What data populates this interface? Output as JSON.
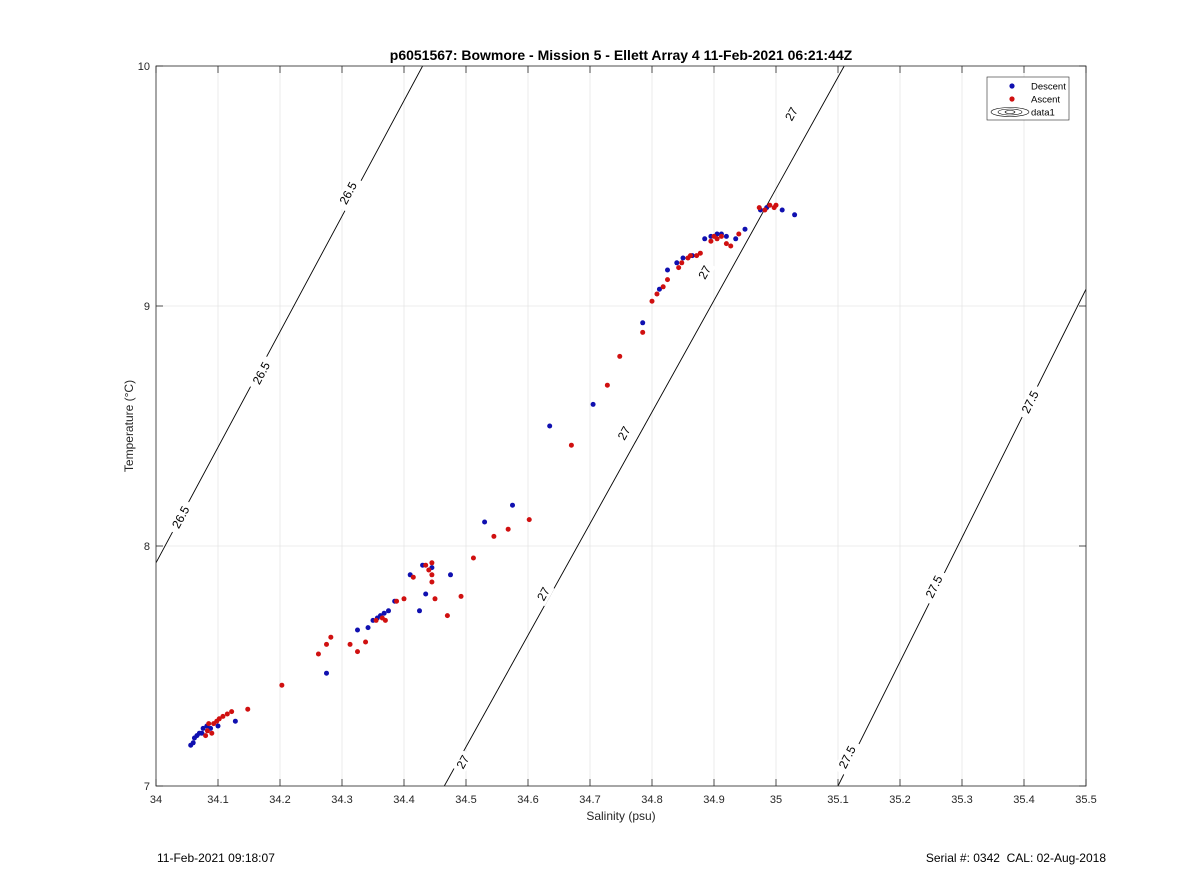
{
  "chart_data": {
    "type": "scatter",
    "title": "p6051567: Bowmore - Mission 5 - Ellett Array 4 11-Feb-2021 06:21:44Z",
    "xlabel": "Salinity (psu)",
    "ylabel": "Temperature (°C)",
    "xlim": [
      34,
      35.5
    ],
    "ylim": [
      7,
      10
    ],
    "x_ticks": [
      "34",
      "34.1",
      "34.2",
      "34.3",
      "34.4",
      "34.5",
      "34.6",
      "34.7",
      "34.8",
      "34.9",
      "35",
      "35.1",
      "35.2",
      "35.3",
      "35.4",
      "35.5"
    ],
    "y_ticks": [
      "7",
      "8",
      "9",
      "10"
    ],
    "grid": true,
    "legend_position": "top-right",
    "legend": [
      "Descent",
      "Ascent",
      "data1"
    ],
    "colors": {
      "descent": "#1010b0",
      "ascent": "#d01010",
      "contour": "#000000",
      "grid": "#e6e6e6"
    },
    "density_contours": [
      {
        "label": "26.5",
        "points": [
          [
            34.0,
            7.93
          ],
          [
            34.43,
            10.0
          ]
        ],
        "labels_at": [
          [
            34.04,
            8.12
          ],
          [
            34.17,
            8.72
          ],
          [
            34.31,
            9.47
          ]
        ]
      },
      {
        "label": "27",
        "points": [
          [
            34.465,
            7.0
          ],
          [
            35.11,
            10.0
          ]
        ],
        "labels_at": [
          [
            34.495,
            7.1
          ],
          [
            34.625,
            7.8
          ],
          [
            34.755,
            8.47
          ],
          [
            34.885,
            9.14
          ],
          [
            35.025,
            9.8
          ]
        ]
      },
      {
        "label": "27.5",
        "points": [
          [
            35.1,
            7.0
          ],
          [
            35.5,
            9.07
          ]
        ],
        "labels_at": [
          [
            35.115,
            7.12
          ],
          [
            35.255,
            7.83
          ],
          [
            35.41,
            8.6
          ]
        ]
      }
    ],
    "series": [
      {
        "name": "Descent",
        "points": [
          [
            34.056,
            7.17
          ],
          [
            34.06,
            7.18
          ],
          [
            34.062,
            7.2
          ],
          [
            34.066,
            7.21
          ],
          [
            34.07,
            7.22
          ],
          [
            34.074,
            7.22
          ],
          [
            34.076,
            7.24
          ],
          [
            34.082,
            7.25
          ],
          [
            34.088,
            7.24
          ],
          [
            34.1,
            7.25
          ],
          [
            34.128,
            7.27
          ],
          [
            34.275,
            7.47
          ],
          [
            34.325,
            7.65
          ],
          [
            34.342,
            7.66
          ],
          [
            34.35,
            7.69
          ],
          [
            34.357,
            7.7
          ],
          [
            34.362,
            7.71
          ],
          [
            34.368,
            7.72
          ],
          [
            34.375,
            7.73
          ],
          [
            34.385,
            7.77
          ],
          [
            34.41,
            7.88
          ],
          [
            34.425,
            7.73
          ],
          [
            34.43,
            7.92
          ],
          [
            34.435,
            7.8
          ],
          [
            34.445,
            7.91
          ],
          [
            34.475,
            7.88
          ],
          [
            34.53,
            8.1
          ],
          [
            34.575,
            8.17
          ],
          [
            34.635,
            8.5
          ],
          [
            34.705,
            8.59
          ],
          [
            34.785,
            8.93
          ],
          [
            34.812,
            9.07
          ],
          [
            34.825,
            9.15
          ],
          [
            34.84,
            9.18
          ],
          [
            34.85,
            9.2
          ],
          [
            34.865,
            9.21
          ],
          [
            34.885,
            9.28
          ],
          [
            34.895,
            9.29
          ],
          [
            34.905,
            9.3
          ],
          [
            34.912,
            9.3
          ],
          [
            34.92,
            9.29
          ],
          [
            34.935,
            9.28
          ],
          [
            34.95,
            9.32
          ],
          [
            34.975,
            9.4
          ],
          [
            34.985,
            9.41
          ],
          [
            35.01,
            9.4
          ],
          [
            35.03,
            9.38
          ]
        ]
      },
      {
        "name": "Ascent",
        "points": [
          [
            34.08,
            7.21
          ],
          [
            34.083,
            7.23
          ],
          [
            34.085,
            7.26
          ],
          [
            34.09,
            7.22
          ],
          [
            34.093,
            7.26
          ],
          [
            34.098,
            7.27
          ],
          [
            34.102,
            7.28
          ],
          [
            34.108,
            7.29
          ],
          [
            34.115,
            7.3
          ],
          [
            34.122,
            7.31
          ],
          [
            34.148,
            7.32
          ],
          [
            34.203,
            7.42
          ],
          [
            34.262,
            7.55
          ],
          [
            34.275,
            7.59
          ],
          [
            34.282,
            7.62
          ],
          [
            34.313,
            7.59
          ],
          [
            34.325,
            7.56
          ],
          [
            34.338,
            7.6
          ],
          [
            34.355,
            7.69
          ],
          [
            34.365,
            7.7
          ],
          [
            34.37,
            7.69
          ],
          [
            34.388,
            7.77
          ],
          [
            34.4,
            7.78
          ],
          [
            34.415,
            7.87
          ],
          [
            34.435,
            7.92
          ],
          [
            34.44,
            7.9
          ],
          [
            34.445,
            7.93
          ],
          [
            34.445,
            7.88
          ],
          [
            34.445,
            7.85
          ],
          [
            34.45,
            7.78
          ],
          [
            34.47,
            7.71
          ],
          [
            34.492,
            7.79
          ],
          [
            34.512,
            7.95
          ],
          [
            34.545,
            8.04
          ],
          [
            34.568,
            8.07
          ],
          [
            34.602,
            8.11
          ],
          [
            34.67,
            8.42
          ],
          [
            34.728,
            8.67
          ],
          [
            34.748,
            8.79
          ],
          [
            34.785,
            8.89
          ],
          [
            34.8,
            9.02
          ],
          [
            34.808,
            9.05
          ],
          [
            34.818,
            9.08
          ],
          [
            34.825,
            9.11
          ],
          [
            34.843,
            9.16
          ],
          [
            34.848,
            9.18
          ],
          [
            34.858,
            9.2
          ],
          [
            34.862,
            9.21
          ],
          [
            34.872,
            9.21
          ],
          [
            34.878,
            9.22
          ],
          [
            34.895,
            9.27
          ],
          [
            34.9,
            9.29
          ],
          [
            34.905,
            9.28
          ],
          [
            34.912,
            9.29
          ],
          [
            34.92,
            9.26
          ],
          [
            34.927,
            9.25
          ],
          [
            34.94,
            9.3
          ],
          [
            34.973,
            9.41
          ],
          [
            34.982,
            9.4
          ],
          [
            34.99,
            9.42
          ],
          [
            34.997,
            9.41
          ],
          [
            35.0,
            9.42
          ]
        ]
      }
    ]
  },
  "footer": {
    "timestamp": "11-Feb-2021 09:18:07",
    "serial": "Serial #: 0342  CAL: 02-Aug-2018"
  }
}
